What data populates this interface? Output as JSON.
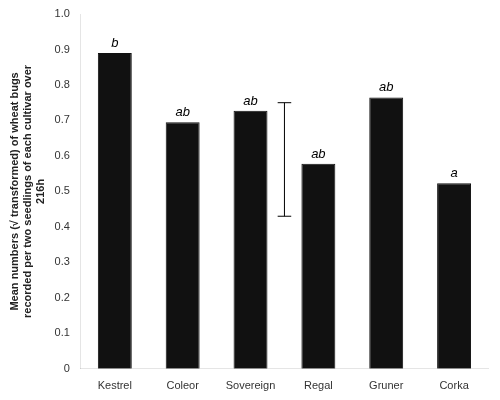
{
  "chart_data": {
    "type": "bar",
    "categories": [
      "Kestrel",
      "Coleor",
      "Sovereign",
      "Regal",
      "Gruner",
      "Corka"
    ],
    "values": [
      0.89,
      0.695,
      0.727,
      0.578,
      0.765,
      0.523
    ],
    "color": "#111111",
    "ylabel": [
      "Mean numbers (√ transformed) of wheat bugs",
      "recorded per two seedlings of each cultivar over",
      "216h"
    ],
    "ylim": [
      0,
      1.0
    ],
    "yticks": [
      0,
      0.1,
      0.2,
      0.3,
      0.4,
      0.5,
      0.6,
      0.7,
      0.8,
      0.9,
      {
        "value": 1.0,
        "label": "1.0"
      }
    ],
    "grid": false,
    "annotations": [
      {
        "text": "b",
        "x": "Kestrel"
      },
      {
        "text": "ab",
        "x": "Coleor"
      },
      {
        "text": "ab",
        "x": "Sovereign"
      },
      {
        "text": "ab",
        "x": "Regal"
      },
      {
        "text": "ab",
        "x": "Gruner"
      },
      {
        "text": "a",
        "x": "Corka"
      }
    ],
    "lsd_bar": {
      "between": [
        "Sovereign",
        "Regal"
      ],
      "low": 0.43,
      "high": 0.75
    }
  }
}
